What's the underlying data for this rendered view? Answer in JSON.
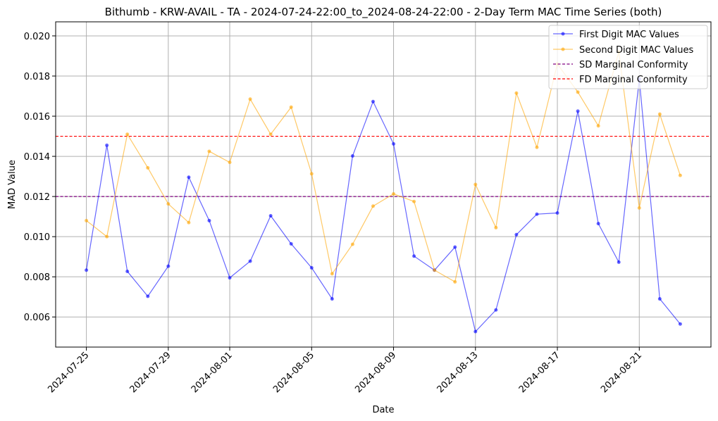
{
  "chart_data": {
    "type": "line",
    "title": "Bithumb - KRW-AVAIL - TA - 2024-07-24-22:00_to_2024-08-24-22:00 - 2-Day Term MAC Time Series (both)",
    "xlabel": "Date",
    "ylabel": "MAD Value",
    "x": [
      "2024-07-25",
      "2024-07-26",
      "2024-07-27",
      "2024-07-28",
      "2024-07-29",
      "2024-07-30",
      "2024-07-31",
      "2024-08-01",
      "2024-08-02",
      "2024-08-03",
      "2024-08-04",
      "2024-08-05",
      "2024-08-06",
      "2024-08-07",
      "2024-08-08",
      "2024-08-09",
      "2024-08-10",
      "2024-08-11",
      "2024-08-12",
      "2024-08-13",
      "2024-08-14",
      "2024-08-15",
      "2024-08-16",
      "2024-08-17",
      "2024-08-18",
      "2024-08-19",
      "2024-08-20",
      "2024-08-21",
      "2024-08-22",
      "2024-08-23"
    ],
    "xlim": [
      "2024-07-23T12:00",
      "2024-08-24T12:00"
    ],
    "ylim": [
      0.0045,
      0.0207
    ],
    "x_ticks": [
      "2024-07-25",
      "2024-07-29",
      "2024-08-01",
      "2024-08-05",
      "2024-08-09",
      "2024-08-13",
      "2024-08-17",
      "2024-08-21"
    ],
    "y_ticks": [
      "0.006",
      "0.008",
      "0.010",
      "0.012",
      "0.014",
      "0.016",
      "0.018",
      "0.020"
    ],
    "grid": true,
    "legend_position": "top-right",
    "series": [
      {
        "name": "First Digit MAC Values",
        "color": "#0000ff",
        "values": [
          0.00833,
          0.01455,
          0.00827,
          0.00703,
          0.00853,
          0.01296,
          0.0108,
          0.00795,
          0.00878,
          0.01104,
          0.00964,
          0.00845,
          0.0069,
          0.01402,
          0.01673,
          0.01462,
          0.00903,
          0.00833,
          0.00948,
          0.00527,
          0.00635,
          0.0101,
          0.01112,
          0.01118,
          0.01625,
          0.01065,
          0.00873,
          0.01785,
          0.0069,
          0.00565
        ]
      },
      {
        "name": "Second Digit MAC Values",
        "color": "#ffa500",
        "values": [
          0.0108,
          0.01,
          0.0151,
          0.01343,
          0.01163,
          0.0107,
          0.01425,
          0.0137,
          0.01685,
          0.0151,
          0.01645,
          0.01313,
          0.00815,
          0.00962,
          0.01152,
          0.01213,
          0.01175,
          0.00833,
          0.00775,
          0.0126,
          0.01045,
          0.01715,
          0.01445,
          0.0186,
          0.0172,
          0.01552,
          0.0192,
          0.01143,
          0.0161,
          0.01305
        ]
      }
    ],
    "reference_lines": [
      {
        "name": "SD Marginal Conformity",
        "value": 0.012,
        "color": "#800080"
      },
      {
        "name": "FD Marginal Conformity",
        "value": 0.015,
        "color": "#ff0000"
      }
    ]
  }
}
